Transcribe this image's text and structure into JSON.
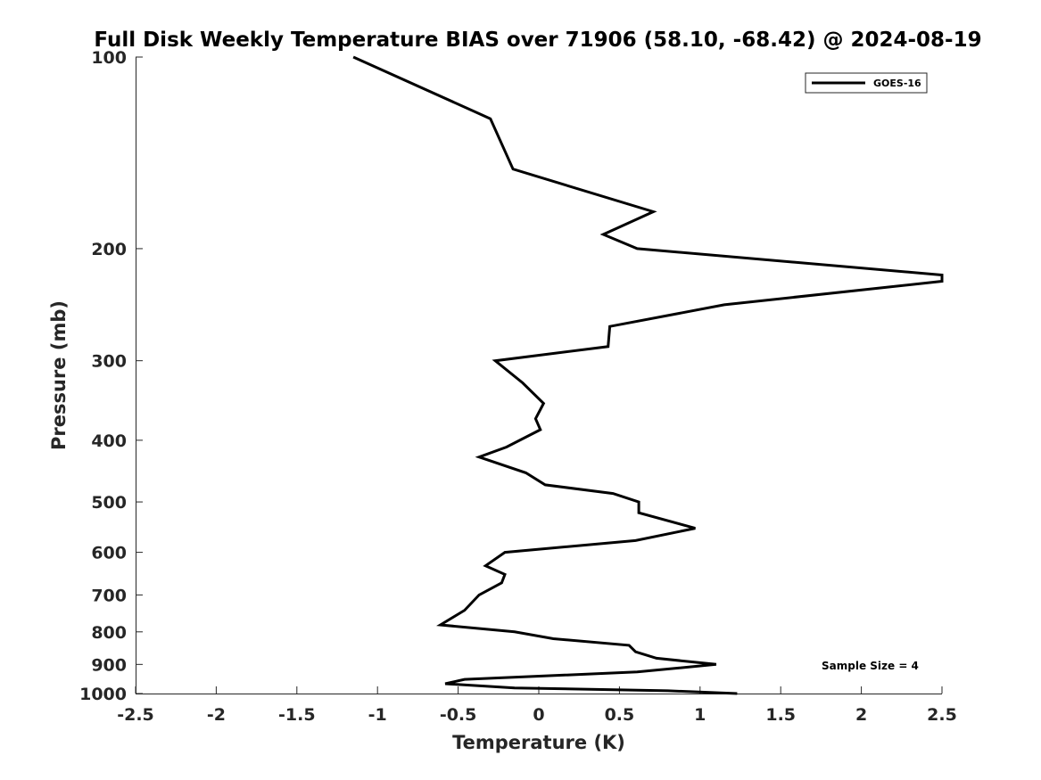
{
  "chart_data": {
    "type": "line",
    "title": "Full Disk Weekly Temperature BIAS over 71906 (58.10, -68.42) @ 2024-08-19",
    "xlabel": "Temperature (K)",
    "ylabel": "Pressure (mb)",
    "xlim": [
      -2.5,
      2.5
    ],
    "ylim": [
      1000,
      100
    ],
    "y_scale": "log",
    "x_ticks": [
      "-2.5",
      "-2",
      "-1.5",
      "-1",
      "-0.5",
      "0",
      "0.5",
      "1",
      "1.5",
      "2",
      "2.5"
    ],
    "y_ticks": [
      "100",
      "200",
      "300",
      "400",
      "500",
      "600",
      "700",
      "800",
      "900",
      "1000"
    ],
    "grid": false,
    "legend": {
      "entries": [
        "GOES-16"
      ],
      "placement": "top-right"
    },
    "annotation": "Sample Size = 4",
    "series": [
      {
        "name": "GOES-16",
        "color": "#000000",
        "points": [
          [
            -1.15,
            100
          ],
          [
            -0.3,
            125
          ],
          [
            -0.16,
            150
          ],
          [
            0.71,
            175
          ],
          [
            0.4,
            190
          ],
          [
            0.61,
            200
          ],
          [
            2.5,
            220
          ],
          [
            2.5,
            225
          ],
          [
            1.15,
            245
          ],
          [
            0.44,
            265
          ],
          [
            0.43,
            285
          ],
          [
            -0.27,
            300
          ],
          [
            -0.1,
            325
          ],
          [
            0.03,
            350
          ],
          [
            -0.02,
            370
          ],
          [
            0.01,
            385
          ],
          [
            -0.2,
            410
          ],
          [
            -0.37,
            425
          ],
          [
            -0.08,
            450
          ],
          [
            0.04,
            470
          ],
          [
            0.46,
            485
          ],
          [
            0.62,
            500
          ],
          [
            0.62,
            520
          ],
          [
            0.97,
            550
          ],
          [
            0.6,
            575
          ],
          [
            -0.21,
            600
          ],
          [
            -0.33,
            630
          ],
          [
            -0.21,
            650
          ],
          [
            -0.23,
            670
          ],
          [
            -0.37,
            700
          ],
          [
            -0.46,
            740
          ],
          [
            -0.61,
            780
          ],
          [
            -0.15,
            800
          ],
          [
            0.09,
            820
          ],
          [
            0.56,
            840
          ],
          [
            0.6,
            860
          ],
          [
            0.73,
            880
          ],
          [
            1.1,
            900
          ],
          [
            0.61,
            925
          ],
          [
            -0.03,
            940
          ],
          [
            -0.46,
            950
          ],
          [
            -0.58,
            965
          ],
          [
            -0.15,
            980
          ],
          [
            0.8,
            990
          ],
          [
            1.23,
            1000
          ]
        ]
      }
    ]
  }
}
